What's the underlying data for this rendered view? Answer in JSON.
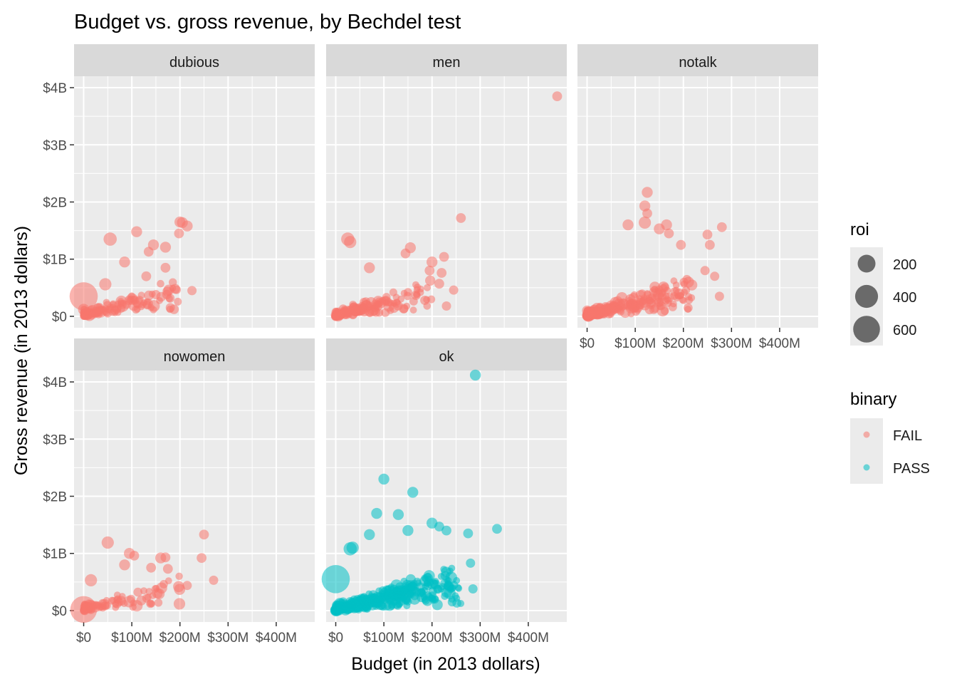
{
  "chart_data": {
    "type": "scatter",
    "title": "Budget vs. gross revenue, by Bechdel test",
    "xlabel": "Budget (in 2013 dollars)",
    "ylabel": "Gross revenue (in 2013 dollars)",
    "xlim": [
      -20000000,
      480000000
    ],
    "ylim": [
      -200000000,
      4200000000
    ],
    "x_ticks": [
      {
        "value": 0,
        "label": "$0"
      },
      {
        "value": 100000000,
        "label": "$100M"
      },
      {
        "value": 200000000,
        "label": "$200M"
      },
      {
        "value": 300000000,
        "label": "$300M"
      },
      {
        "value": 400000000,
        "label": "$400M"
      }
    ],
    "y_ticks": [
      {
        "value": 0,
        "label": "$0"
      },
      {
        "value": 1000000000,
        "label": "$1B"
      },
      {
        "value": 2000000000,
        "label": "$2B"
      },
      {
        "value": 3000000000,
        "label": "$3B"
      },
      {
        "value": 4000000000,
        "label": "$4B"
      }
    ],
    "grid": true,
    "colors": {
      "FAIL": "#F8766D",
      "PASS": "#00BFC4",
      "panel_bg": "#EBEBEB",
      "strip_bg": "#D9D9D9",
      "grid": "#FFFFFF"
    },
    "legend": {
      "placement": "right",
      "size": {
        "title": "roi",
        "entries": [
          {
            "label": "200",
            "value": 200
          },
          {
            "label": "400",
            "value": 400
          },
          {
            "label": "600",
            "value": 600
          }
        ]
      },
      "color": {
        "title": "binary",
        "entries": [
          {
            "label": "FAIL",
            "color": "#F8766D"
          },
          {
            "label": "PASS",
            "color": "#00BFC4"
          }
        ]
      }
    },
    "facets": [
      {
        "label": "dubious",
        "binary": "FAIL",
        "highlights": [
          {
            "x": 0,
            "y": 350000000,
            "roi": 680
          },
          {
            "x": 55000000,
            "y": 1350000000,
            "roi": 80
          },
          {
            "x": 110000000,
            "y": 1480000000,
            "roi": 40
          },
          {
            "x": 200000000,
            "y": 1650000000,
            "roi": 40
          },
          {
            "x": 205000000,
            "y": 1640000000,
            "roi": 40
          },
          {
            "x": 215000000,
            "y": 1580000000,
            "roi": 40
          },
          {
            "x": 198000000,
            "y": 1450000000,
            "roi": 25
          },
          {
            "x": 145000000,
            "y": 1250000000,
            "roi": 40
          },
          {
            "x": 170000000,
            "y": 1210000000,
            "roi": 40
          },
          {
            "x": 135000000,
            "y": 1130000000,
            "roi": 25
          },
          {
            "x": 85000000,
            "y": 950000000,
            "roi": 40
          },
          {
            "x": 170000000,
            "y": 850000000,
            "roi": 25
          },
          {
            "x": 130000000,
            "y": 700000000,
            "roi": 25
          },
          {
            "x": 45000000,
            "y": 560000000,
            "roi": 60
          },
          {
            "x": 225000000,
            "y": 450000000,
            "roi": 20
          },
          {
            "x": 190000000,
            "y": 480000000,
            "roi": 25
          },
          {
            "x": 150000000,
            "y": 380000000,
            "roi": 20
          },
          {
            "x": 180000000,
            "y": 150000000,
            "roi": 20
          }
        ],
        "cluster": {
          "n": 120,
          "seed": 11,
          "x": [
            0,
            200000000
          ],
          "y": [
            0,
            800000000
          ]
        }
      },
      {
        "label": "men",
        "binary": "FAIL",
        "highlights": [
          {
            "x": 460000000,
            "y": 3850000000,
            "roi": 25
          },
          {
            "x": 260000000,
            "y": 1720000000,
            "roi": 25
          },
          {
            "x": 25000000,
            "y": 1350000000,
            "roi": 80
          },
          {
            "x": 30000000,
            "y": 1300000000,
            "roi": 60
          },
          {
            "x": 155000000,
            "y": 1200000000,
            "roi": 40
          },
          {
            "x": 145000000,
            "y": 1100000000,
            "roi": 25
          },
          {
            "x": 225000000,
            "y": 1040000000,
            "roi": 25
          },
          {
            "x": 200000000,
            "y": 950000000,
            "roi": 40
          },
          {
            "x": 70000000,
            "y": 850000000,
            "roi": 40
          },
          {
            "x": 195000000,
            "y": 800000000,
            "roi": 25
          },
          {
            "x": 220000000,
            "y": 760000000,
            "roi": 25
          },
          {
            "x": 215000000,
            "y": 570000000,
            "roi": 25
          },
          {
            "x": 245000000,
            "y": 460000000,
            "roi": 20
          },
          {
            "x": 230000000,
            "y": 180000000,
            "roi": 20
          },
          {
            "x": 185000000,
            "y": 280000000,
            "roi": 20
          }
        ],
        "cluster": {
          "n": 150,
          "seed": 23,
          "x": [
            0,
            200000000
          ],
          "y": [
            0,
            900000000
          ]
        }
      },
      {
        "label": "notalk",
        "binary": "FAIL",
        "highlights": [
          {
            "x": 125000000,
            "y": 2170000000,
            "roi": 40
          },
          {
            "x": 120000000,
            "y": 1930000000,
            "roi": 40
          },
          {
            "x": 125000000,
            "y": 1800000000,
            "roi": 25
          },
          {
            "x": 85000000,
            "y": 1600000000,
            "roi": 40
          },
          {
            "x": 120000000,
            "y": 1640000000,
            "roi": 60
          },
          {
            "x": 165000000,
            "y": 1600000000,
            "roi": 40
          },
          {
            "x": 150000000,
            "y": 1530000000,
            "roi": 40
          },
          {
            "x": 280000000,
            "y": 1560000000,
            "roi": 25
          },
          {
            "x": 250000000,
            "y": 1430000000,
            "roi": 25
          },
          {
            "x": 255000000,
            "y": 1250000000,
            "roi": 25
          },
          {
            "x": 170000000,
            "y": 1450000000,
            "roi": 25
          },
          {
            "x": 195000000,
            "y": 1250000000,
            "roi": 25
          },
          {
            "x": 275000000,
            "y": 350000000,
            "roi": 20
          },
          {
            "x": 265000000,
            "y": 700000000,
            "roi": 20
          },
          {
            "x": 245000000,
            "y": 800000000,
            "roi": 20
          }
        ],
        "cluster": {
          "n": 260,
          "seed": 37,
          "x": [
            0,
            220000000
          ],
          "y": [
            0,
            1300000000
          ]
        }
      },
      {
        "label": "nowomen",
        "binary": "FAIL",
        "highlights": [
          {
            "x": 0,
            "y": 20000000,
            "roi": 600
          },
          {
            "x": 50000000,
            "y": 1190000000,
            "roi": 60
          },
          {
            "x": 250000000,
            "y": 1330000000,
            "roi": 25
          },
          {
            "x": 95000000,
            "y": 1000000000,
            "roi": 40
          },
          {
            "x": 105000000,
            "y": 960000000,
            "roi": 25
          },
          {
            "x": 160000000,
            "y": 920000000,
            "roi": 40
          },
          {
            "x": 170000000,
            "y": 930000000,
            "roi": 25
          },
          {
            "x": 245000000,
            "y": 920000000,
            "roi": 25
          },
          {
            "x": 85000000,
            "y": 800000000,
            "roi": 40
          },
          {
            "x": 140000000,
            "y": 750000000,
            "roi": 25
          },
          {
            "x": 175000000,
            "y": 730000000,
            "roi": 25
          },
          {
            "x": 270000000,
            "y": 530000000,
            "roi": 20
          },
          {
            "x": 215000000,
            "y": 440000000,
            "roi": 20
          },
          {
            "x": 15000000,
            "y": 530000000,
            "roi": 60
          }
        ],
        "cluster": {
          "n": 80,
          "seed": 53,
          "x": [
            0,
            200000000
          ],
          "y": [
            0,
            600000000
          ]
        }
      },
      {
        "label": "ok",
        "binary": "PASS",
        "highlights": [
          {
            "x": 0,
            "y": 550000000,
            "roi": 680
          },
          {
            "x": 290000000,
            "y": 4120000000,
            "roi": 40
          },
          {
            "x": 100000000,
            "y": 2300000000,
            "roi": 40
          },
          {
            "x": 160000000,
            "y": 2070000000,
            "roi": 40
          },
          {
            "x": 85000000,
            "y": 1700000000,
            "roi": 40
          },
          {
            "x": 130000000,
            "y": 1680000000,
            "roi": 40
          },
          {
            "x": 200000000,
            "y": 1530000000,
            "roi": 40
          },
          {
            "x": 215000000,
            "y": 1470000000,
            "roi": 25
          },
          {
            "x": 230000000,
            "y": 1400000000,
            "roi": 25
          },
          {
            "x": 275000000,
            "y": 1350000000,
            "roi": 25
          },
          {
            "x": 335000000,
            "y": 1430000000,
            "roi": 25
          },
          {
            "x": 70000000,
            "y": 1330000000,
            "roi": 40
          },
          {
            "x": 150000000,
            "y": 1400000000,
            "roi": 40
          },
          {
            "x": 30000000,
            "y": 1080000000,
            "roi": 80
          },
          {
            "x": 35000000,
            "y": 1100000000,
            "roi": 60
          },
          {
            "x": 280000000,
            "y": 830000000,
            "roi": 20
          },
          {
            "x": 285000000,
            "y": 380000000,
            "roi": 20
          }
        ],
        "cluster": {
          "n": 380,
          "seed": 71,
          "x": [
            0,
            260000000
          ],
          "y": [
            0,
            1300000000
          ]
        }
      }
    ]
  }
}
